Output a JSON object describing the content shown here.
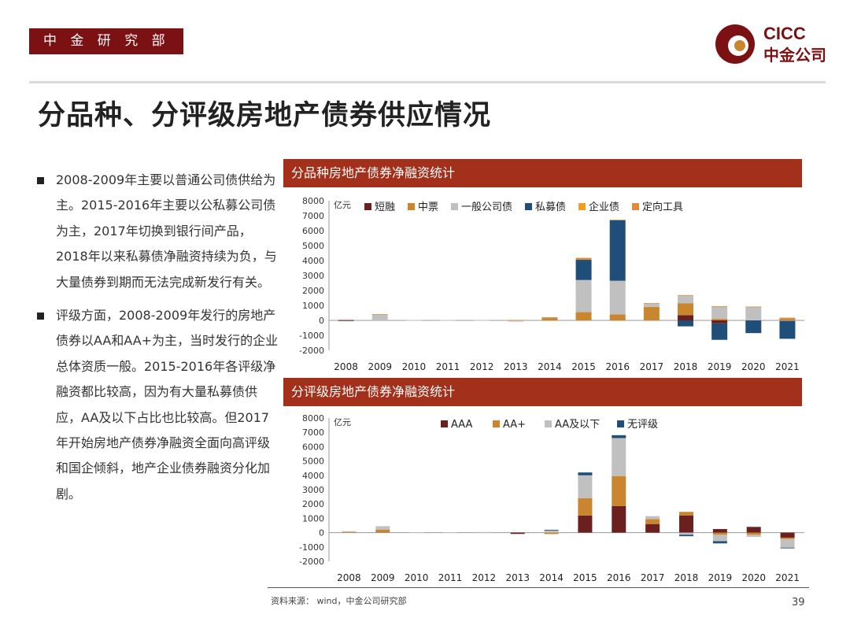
{
  "header": {
    "tag": "中 金 研 究 部",
    "page_title": "分品种、分评级房地产债券供应情况"
  },
  "logo": {
    "en": "CICC",
    "cn": "中金公司"
  },
  "bullets": [
    "2008-2009年主要以普通公司债供给为主。2015-2016年主要以公私募公司债为主，2017年切换到银行间产品，2018年以来私募债净融资持续为负，与大量债券到期而无法完成新发行有关。",
    "评级方面，2008-2009年发行的房地产债券以AA和AA+为主，当时发行的企业总体资质一般。2015-2016年各评级净融资都比较高，因为有大量私募债供应，AA及以下占比也比较高。但2017年开始房地产债券净融资全面向高评级和国企倾斜，地产企业债券融资分化加剧。"
  ],
  "footer": {
    "source": "资料来源： wind，中金公司研究部",
    "page_number": "39"
  },
  "colors": {
    "brand": "#7b1113",
    "title_bar": "#a3301b"
  },
  "chart_data": [
    {
      "type": "bar",
      "stacked": true,
      "title": "分品种房地产债券净融资统计",
      "ylabel": "亿元",
      "ylim": [
        -2000,
        8000
      ],
      "yticks": [
        "8000",
        "7000",
        "6000",
        "5000",
        "4000",
        "3000",
        "2000",
        "1000",
        "0",
        "-1000",
        "-2000"
      ],
      "categories": [
        "2008",
        "2009",
        "2010",
        "2011",
        "2012",
        "2013",
        "2014",
        "2015",
        "2016",
        "2017",
        "2018",
        "2019",
        "2020",
        "2021"
      ],
      "series": [
        {
          "name": "短融",
          "color": "#6b1f1f",
          "values": [
            -30,
            0,
            0,
            0,
            0,
            0,
            0,
            0,
            0,
            0,
            350,
            -200,
            0,
            0
          ]
        },
        {
          "name": "中票",
          "color": "#c9862e",
          "values": [
            0,
            0,
            0,
            0,
            0,
            0,
            150,
            550,
            400,
            900,
            800,
            100,
            0,
            80
          ]
        },
        {
          "name": "一般公司债",
          "color": "#c0c0c0",
          "values": [
            80,
            380,
            20,
            20,
            20,
            -80,
            0,
            2150,
            2250,
            200,
            500,
            800,
            900,
            -30
          ]
        },
        {
          "name": "私募债",
          "color": "#1f4e79",
          "values": [
            0,
            0,
            0,
            0,
            0,
            0,
            0,
            1350,
            4050,
            0,
            -400,
            -1100,
            -850,
            -1200
          ]
        },
        {
          "name": "企业债",
          "color": "#f0a020",
          "values": [
            0,
            0,
            0,
            0,
            0,
            0,
            0,
            0,
            0,
            0,
            0,
            0,
            0,
            0
          ]
        },
        {
          "name": "定向工具",
          "color": "#e08a3c",
          "values": [
            0,
            40,
            0,
            0,
            0,
            30,
            60,
            130,
            30,
            50,
            40,
            50,
            20,
            100
          ]
        }
      ]
    },
    {
      "type": "bar",
      "stacked": true,
      "title": "分评级房地产债券净融资统计",
      "ylabel": "亿元",
      "ylim": [
        -2000,
        8000
      ],
      "yticks": [
        "8000",
        "7000",
        "6000",
        "5000",
        "4000",
        "3000",
        "2000",
        "1000",
        "0",
        "-1000",
        "-2000"
      ],
      "categories": [
        "2008",
        "2009",
        "2010",
        "2011",
        "2012",
        "2013",
        "2014",
        "2015",
        "2016",
        "2017",
        "2018",
        "2019",
        "2020",
        "2021"
      ],
      "series": [
        {
          "name": "AAA",
          "color": "#6b1f1f",
          "values": [
            0,
            0,
            0,
            0,
            0,
            -80,
            0,
            1200,
            1850,
            600,
            1200,
            250,
            400,
            -350
          ]
        },
        {
          "name": "AA+",
          "color": "#c9862e",
          "values": [
            50,
            200,
            0,
            0,
            0,
            0,
            -100,
            1200,
            2100,
            350,
            250,
            -150,
            -150,
            -100
          ]
        },
        {
          "name": "AA及以下",
          "color": "#c0c0c0",
          "values": [
            50,
            250,
            20,
            20,
            40,
            -40,
            150,
            1600,
            2650,
            200,
            -150,
            -450,
            -150,
            -600
          ]
        },
        {
          "name": "无评级",
          "color": "#1f4e79",
          "values": [
            0,
            0,
            0,
            0,
            0,
            0,
            50,
            200,
            200,
            0,
            -100,
            -150,
            0,
            -50
          ]
        }
      ]
    }
  ]
}
